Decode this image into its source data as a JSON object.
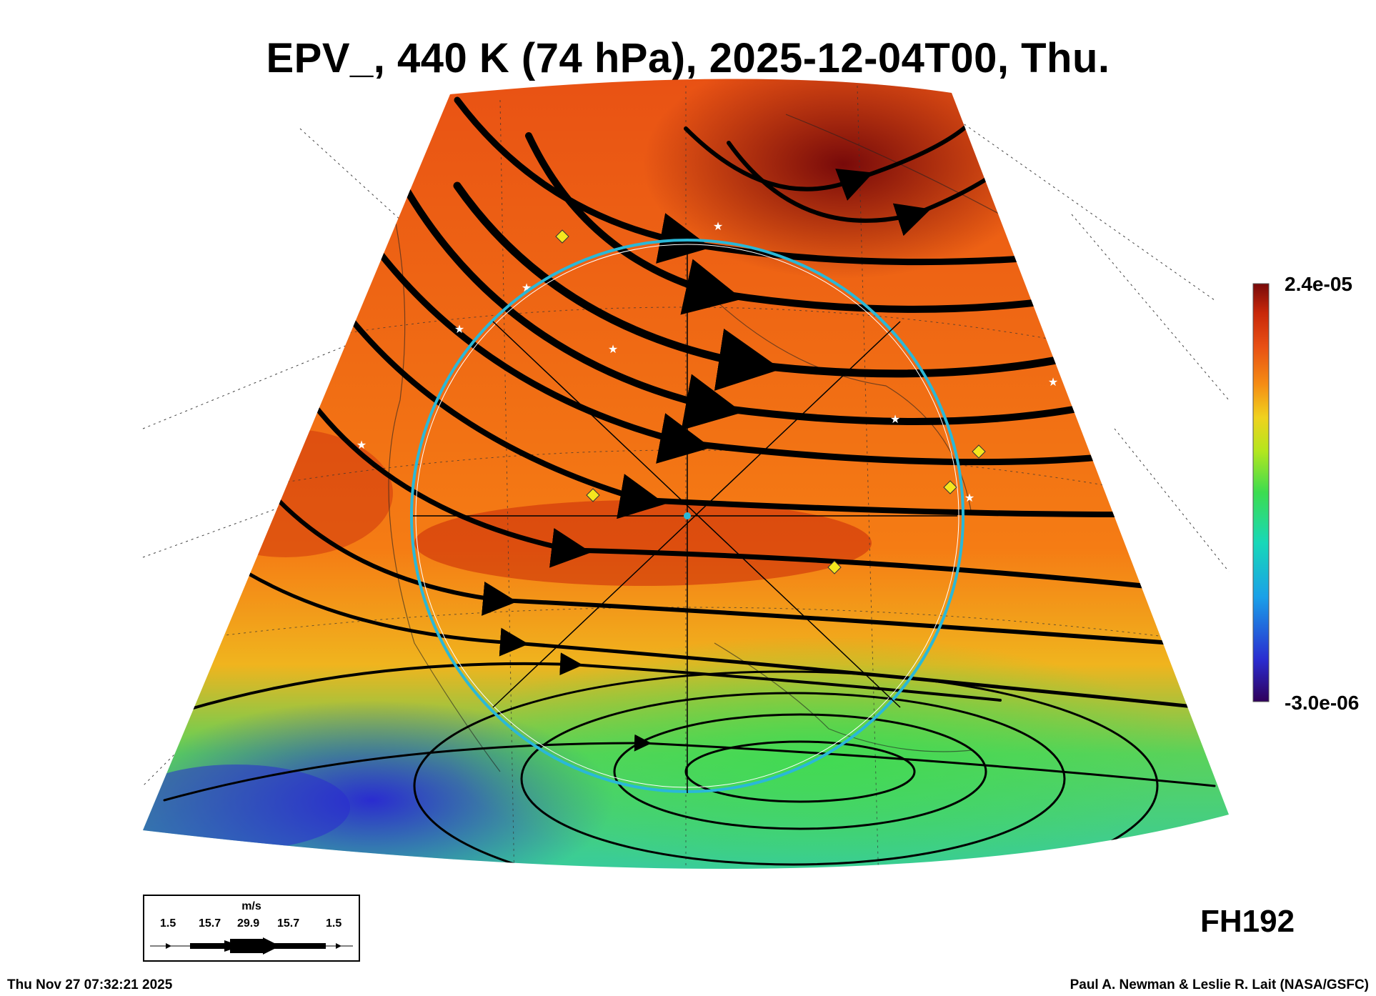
{
  "title": "EPV_, 440 K (74 hPa), 2025-12-04T00, Thu.",
  "colorbar": {
    "max_label": "2.4e-05",
    "min_label": "-3.0e-06",
    "colors": [
      "#30005a",
      "#2a2cd0",
      "#1aa0e8",
      "#18d8b8",
      "#3cdc50",
      "#b4e61e",
      "#f0d21e",
      "#f58c14",
      "#e85014",
      "#c8280a",
      "#780a0a"
    ]
  },
  "forecast_hour": "FH192",
  "footer": {
    "timestamp": "Thu Nov 27 07:32:21 2025",
    "credit": "Paul A. Newman & Leslie R. Lait (NASA/GSFC)"
  },
  "wind_legend": {
    "unit": "m/s",
    "values": [
      "1.5",
      "15.7",
      "29.9",
      "15.7",
      "1.5"
    ]
  },
  "map": {
    "field": "EPV_",
    "overlay_circle_color": "#2ab8d8",
    "marker_colors": {
      "diamond": "#f5e61e",
      "star": "#ffffff"
    }
  }
}
